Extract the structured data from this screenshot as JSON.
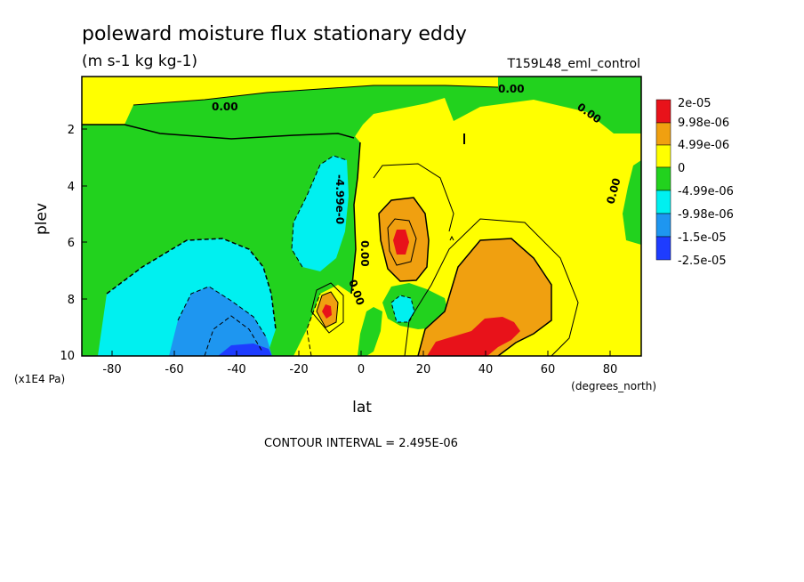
{
  "chart_data": {
    "type": "contour",
    "title": "poleward moisture flux stationary eddy",
    "units": "(m s-1 kg kg-1)",
    "dataset": "T159L48_eml_control",
    "xlabel": "lat",
    "xunits": "(degrees_north)",
    "ylabel": "plev",
    "yunits": "(x1E4 Pa)",
    "xlim": [
      -90,
      90
    ],
    "ylim": [
      10,
      0
    ],
    "x_ticks": [
      "-80",
      "-60",
      "-40",
      "-20",
      "0",
      "20",
      "40",
      "60",
      "80"
    ],
    "y_ticks": [
      "2",
      "4",
      "6",
      "8",
      "10"
    ],
    "contour_interval": "CONTOUR INTERVAL = 2.495E-06",
    "contour_labels": [
      "0.00",
      "0.00",
      "0.00",
      "0.00",
      "-4.99e-0",
      "0.00",
      "0.00"
    ],
    "colorbar": [
      {
        "label": "2e-05",
        "color": "#e8121a"
      },
      {
        "label": "9.98e-06",
        "color": "#f0a010"
      },
      {
        "label": "4.99e-06",
        "color": "#ffff00"
      },
      {
        "label": "0",
        "color": "#22d21e"
      },
      {
        "label": "-4.99e-06",
        "color": "#00f0f0"
      },
      {
        "label": "-9.98e-06",
        "color": "#1e96f0"
      },
      {
        "label": "-1.5e-05",
        "color": "#1e3cff"
      },
      {
        "label": "-2.5e-05",
        "color": ""
      }
    ]
  }
}
